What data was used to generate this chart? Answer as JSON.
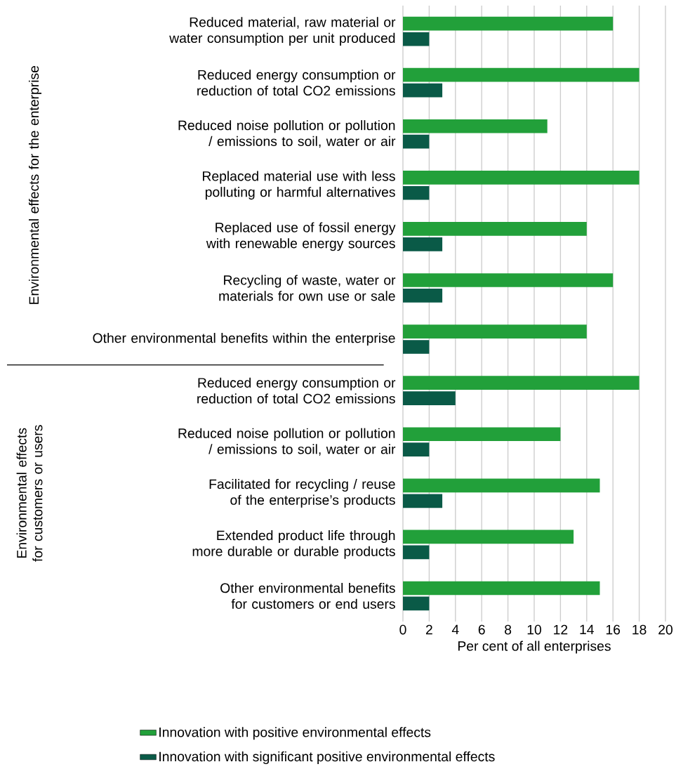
{
  "chart_data": {
    "type": "bar",
    "orientation": "horizontal",
    "xlabel": "Per cent of all enterprises",
    "categories": [
      "Reduced material, raw material or water consumption per unit produced",
      "Reduced energy consumption or reduction of total CO2 emissions",
      "Reduced noise pollution or pollution / emissions to soil, water or air",
      "Replaced material use with less polluting or harmful alternatives",
      "Replaced use of fossil energy with renewable energy sources",
      "Recycling of waste, water or materials for own use or sale",
      "Other environmental benefits within the enterprise",
      "Reduced energy consumption or reduction of total CO2 emissions",
      "Reduced noise pollution or pollution / emissions to soil, water or air",
      "Facilitated for recycling / reuse of the enterprise’s products",
      "Extended product life through more durable or durable products",
      "Other environmental benefits for customers or end users"
    ],
    "series": [
      {
        "name": "Innovation with positive environmental effects",
        "color": "#22a03a",
        "values": [
          16,
          18,
          11,
          18,
          14,
          16,
          14,
          18,
          12,
          15,
          13,
          15
        ]
      },
      {
        "name": "Innovation with significant positive environmental effects",
        "color": "#0a5a47",
        "values": [
          2,
          3,
          2,
          2,
          3,
          3,
          2,
          4,
          2,
          3,
          2,
          2
        ]
      }
    ],
    "xlim": [
      0,
      20
    ],
    "xticks": [
      0,
      2,
      4,
      6,
      8,
      10,
      12,
      14,
      16,
      18,
      20
    ],
    "grid": "x",
    "legend": "bottom",
    "annotations": [
      "Environmental effects for the enterprise",
      "Environmental effects for customers or users"
    ]
  }
}
